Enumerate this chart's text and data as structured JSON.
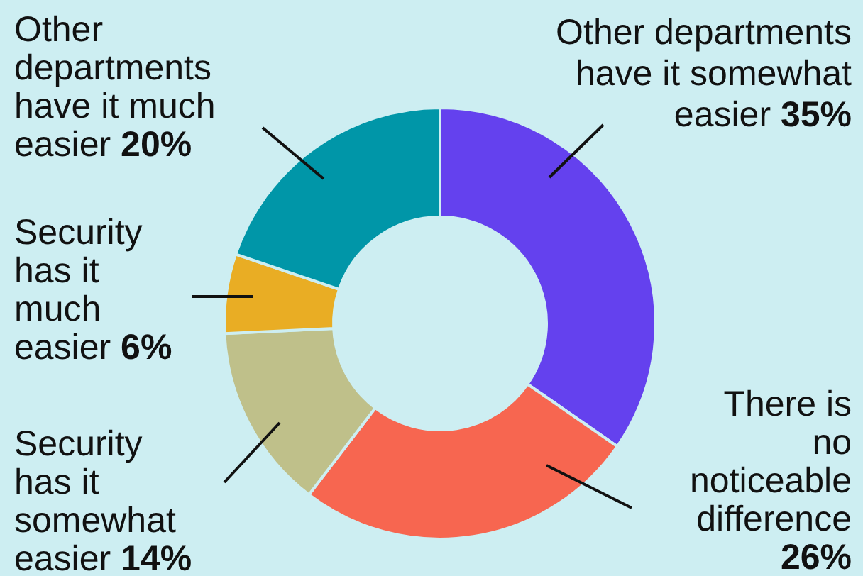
{
  "chart_data": {
    "type": "donut",
    "categories": [
      "Other departments have it somewhat easier",
      "There is no noticeable difference",
      "Security has it somewhat easier",
      "Security has it much easier",
      "Other departments have it much easier"
    ],
    "values": [
      35,
      26,
      14,
      6,
      20
    ],
    "value_labels": [
      "35%",
      "26%",
      "14%",
      "6%",
      "20%"
    ],
    "colors": [
      "#6441ee",
      "#f76650",
      "#bfc08a",
      "#e9ad24",
      "#0096a8"
    ],
    "legend": false
  }
}
